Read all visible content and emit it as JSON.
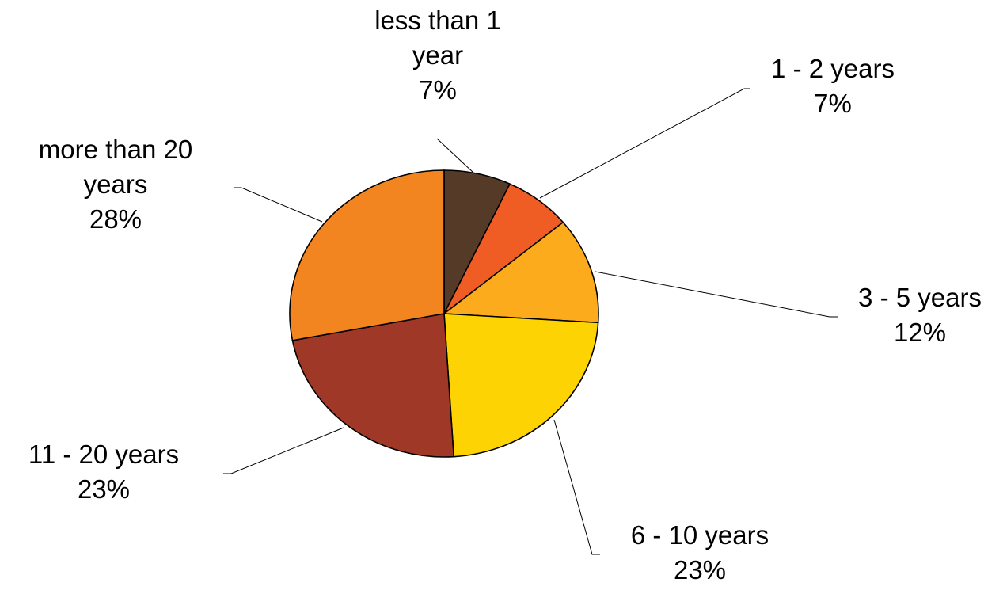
{
  "chart_data": {
    "type": "pie",
    "title": "",
    "start_angle_deg": 0,
    "direction": "clockwise",
    "slices": [
      {
        "label_lines": [
          "less than 1",
          "year"
        ],
        "value": 7,
        "display": "7%",
        "color": "#553a28"
      },
      {
        "label_lines": [
          "1 - 2 years"
        ],
        "value": 7,
        "display": "7%",
        "color": "#f05d24"
      },
      {
        "label_lines": [
          "3 - 5 years"
        ],
        "value": 12,
        "display": "12%",
        "color": "#fbab1b"
      },
      {
        "label_lines": [
          "6 - 10 years"
        ],
        "value": 23,
        "display": "23%",
        "color": "#fdd303"
      },
      {
        "label_lines": [
          "11 - 20 years"
        ],
        "value": 23,
        "display": "23%",
        "color": "#a03827"
      },
      {
        "label_lines": [
          "more than 20",
          "years"
        ],
        "value": 28,
        "display": "28%",
        "color": "#f38520"
      }
    ],
    "legend": "none",
    "data_labels": "outside-with-leader-lines"
  }
}
